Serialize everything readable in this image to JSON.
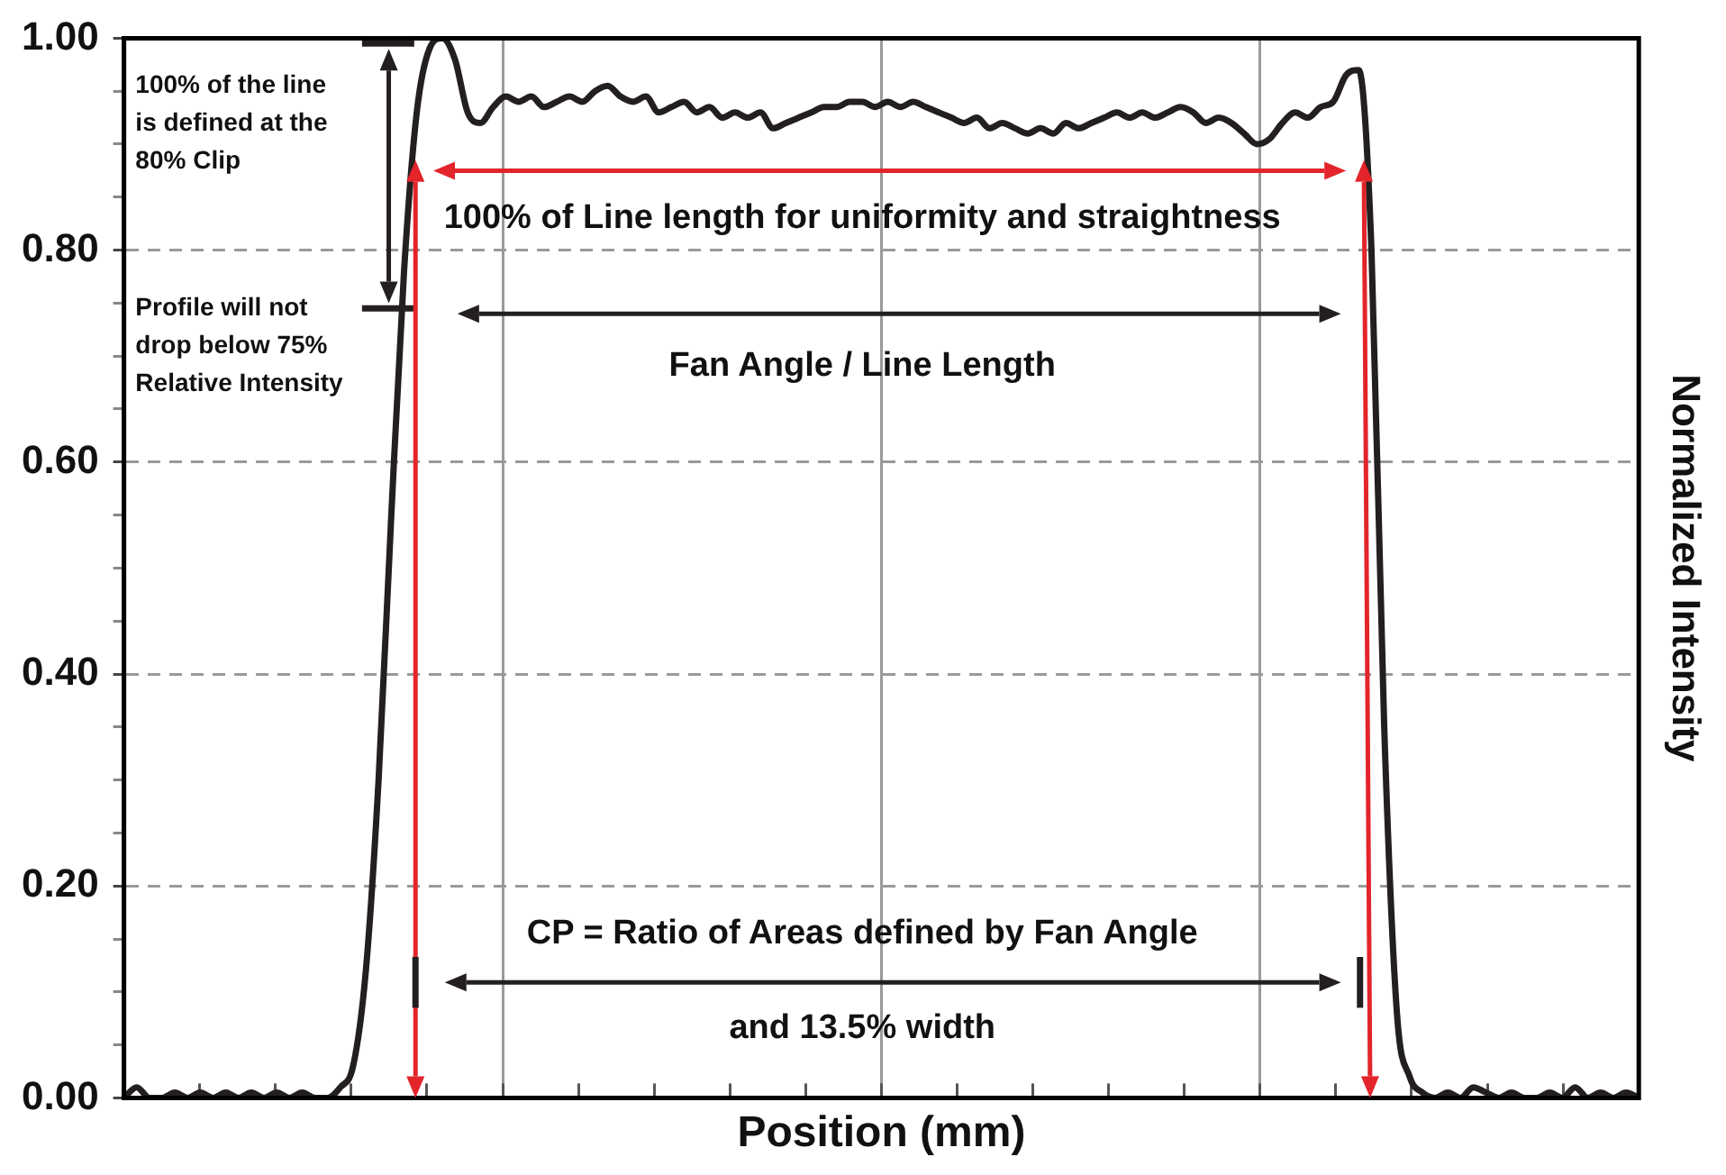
{
  "chart_data": {
    "type": "line",
    "xlabel": "Position (mm)",
    "ylabel": "Normalized Intensity",
    "categories": [
      null,
      null,
      null,
      null,
      null,
      null,
      null,
      null,
      null,
      null,
      null,
      null,
      null,
      null,
      null,
      null,
      null,
      null,
      null,
      null,
      null,
      null,
      null,
      null,
      null,
      null,
      null,
      null,
      null,
      null,
      null,
      null,
      null,
      null,
      null,
      null,
      null,
      null,
      null,
      null,
      null,
      null,
      null,
      null,
      null,
      null,
      null,
      null,
      null,
      null,
      null,
      null,
      null,
      null,
      null,
      null,
      null,
      null,
      null,
      null,
      null,
      null,
      null,
      null,
      null,
      null,
      null,
      null,
      null,
      null,
      null,
      null,
      null,
      null,
      null,
      null,
      null,
      null,
      null,
      null,
      null,
      null,
      null,
      null,
      null,
      null,
      null,
      null,
      null,
      null,
      null,
      null,
      null,
      null,
      null,
      null,
      null,
      null,
      null,
      null,
      null,
      null,
      null,
      null,
      null,
      null,
      null,
      null,
      null,
      null,
      null,
      null,
      null,
      null,
      null,
      null,
      null,
      null,
      null,
      null
    ],
    "series": [
      {
        "color": "#231f20",
        "values": [
          0.0,
          0.01,
          0.0,
          0.0,
          0.005,
          0.0,
          0.005,
          0.0,
          0.005,
          0.0,
          0.005,
          0.0,
          0.005,
          0.0,
          0.005,
          0.0,
          0.0,
          0.01,
          0.03,
          0.12,
          0.3,
          0.55,
          0.78,
          0.93,
          0.99,
          1.0,
          0.98,
          0.93,
          0.92,
          0.935,
          0.945,
          0.94,
          0.945,
          0.935,
          0.94,
          0.945,
          0.94,
          0.95,
          0.955,
          0.945,
          0.94,
          0.945,
          0.93,
          0.935,
          0.94,
          0.93,
          0.935,
          0.925,
          0.93,
          0.925,
          0.93,
          0.915,
          0.92,
          0.925,
          0.93,
          0.935,
          0.935,
          0.94,
          0.94,
          0.935,
          0.94,
          0.935,
          0.94,
          0.935,
          0.93,
          0.925,
          0.92,
          0.925,
          0.915,
          0.92,
          0.915,
          0.91,
          0.915,
          0.91,
          0.92,
          0.915,
          0.92,
          0.925,
          0.93,
          0.925,
          0.93,
          0.925,
          0.93,
          0.935,
          0.93,
          0.92,
          0.925,
          0.92,
          0.91,
          0.9,
          0.905,
          0.92,
          0.93,
          0.925,
          0.935,
          0.94,
          0.965,
          0.97,
          0.8,
          0.35,
          0.08,
          0.02,
          0.005,
          0.0,
          0.005,
          0.0,
          0.01,
          0.005,
          0.0,
          0.005,
          0.0,
          0.0,
          0.005,
          0.0,
          0.01,
          0.0,
          0.005,
          0.0,
          0.005,
          0.0
        ]
      }
    ],
    "ylim": [
      0,
      1
    ],
    "yticks": [
      {
        "value": 0,
        "label": "0.00"
      },
      {
        "value": 0.05,
        "label": null
      },
      {
        "value": 0.1,
        "label": null
      },
      {
        "value": 0.15,
        "label": null
      },
      {
        "value": 0.2,
        "label": "0.20"
      },
      {
        "value": 0.25,
        "label": null
      },
      {
        "value": 0.3,
        "label": null
      },
      {
        "value": 0.35,
        "label": null
      },
      {
        "value": 0.4,
        "label": "0.40"
      },
      {
        "value": 0.45,
        "label": null
      },
      {
        "value": 0.5,
        "label": null
      },
      {
        "value": 0.55,
        "label": null
      },
      {
        "value": 0.6,
        "label": "0.60"
      },
      {
        "value": 0.65,
        "label": null
      },
      {
        "value": 0.7,
        "label": null
      },
      {
        "value": 0.75,
        "label": null
      },
      {
        "value": 0.8,
        "label": "0.80"
      },
      {
        "value": 0.85,
        "label": null
      },
      {
        "value": 0.9,
        "label": null
      },
      {
        "value": 0.95,
        "label": null
      },
      {
        "value": 1,
        "label": "1.00"
      }
    ],
    "grid": true,
    "marker": "none",
    "line_style": "solid",
    "legend": false,
    "annotations": [
      "100% of the line is defined at the 80% Clip",
      "Profile will not drop below 75% Relative Intensity",
      "100% of Line length for uniformity and straightness",
      "Fan Angle / Line Length",
      "CP = Ratio of Areas defined by Fan Angle",
      "and 13.5% width"
    ]
  }
}
